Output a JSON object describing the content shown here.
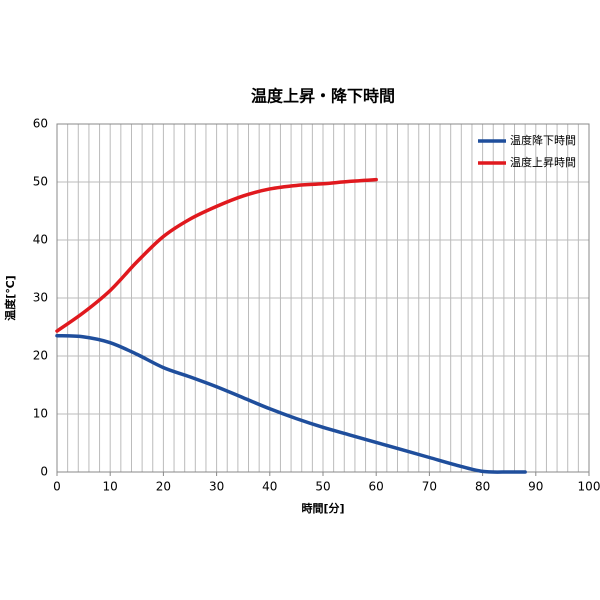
{
  "chart_data": {
    "type": "line",
    "title": "温度上昇・降下時間",
    "x_label": "時間[分]",
    "y_label": "温度[℃]",
    "xlim": [
      0,
      100
    ],
    "xticks": [
      0,
      10,
      20,
      30,
      40,
      50,
      60,
      70,
      80,
      90,
      100
    ],
    "x_minor_step": 2,
    "ylim": [
      0,
      60
    ],
    "yticks": [
      0,
      10,
      20,
      30,
      40,
      50,
      60
    ],
    "grid": true,
    "legend": "upper right",
    "series": [
      {
        "name": "温度降下時間",
        "color": "#1f4e9c",
        "x": [
          0,
          5,
          10,
          15,
          20,
          25,
          30,
          35,
          40,
          45,
          50,
          55,
          60,
          65,
          70,
          75,
          80,
          85,
          88
        ],
        "values": [
          23.5,
          23.3,
          22.3,
          20.3,
          18,
          16.4,
          14.7,
          12.8,
          10.9,
          9.2,
          7.7,
          6.4,
          5.1,
          3.8,
          2.5,
          1.2,
          0.1,
          0,
          0
        ]
      },
      {
        "name": "温度上昇時間",
        "color": "#e0191e",
        "x": [
          0,
          5,
          10,
          15,
          20,
          25,
          30,
          35,
          40,
          45,
          50,
          55,
          60
        ],
        "values": [
          24.3,
          27.5,
          31.3,
          36.2,
          40.6,
          43.6,
          45.8,
          47.6,
          48.8,
          49.4,
          49.7,
          50.1,
          50.4
        ]
      }
    ]
  }
}
